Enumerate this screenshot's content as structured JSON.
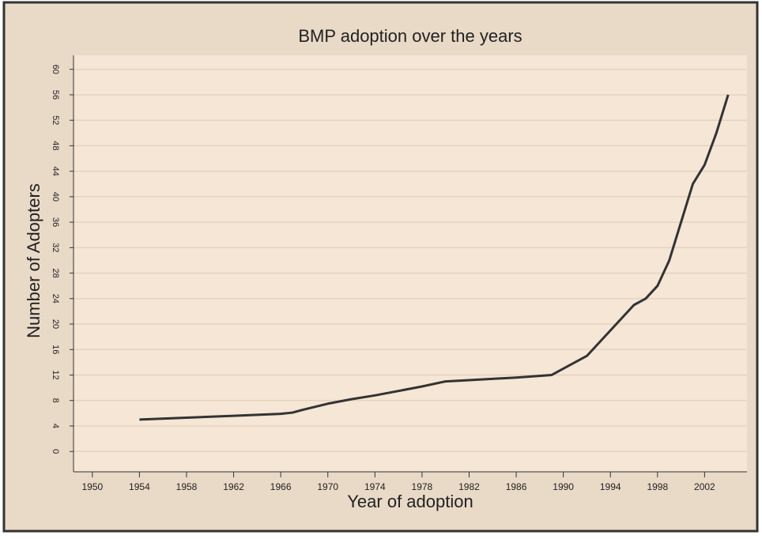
{
  "chart_data": {
    "type": "line",
    "title": "BMP adoption over the years",
    "x_label": "Year of adoption",
    "y_label": "Number of Adopters",
    "x": [
      1954,
      1958,
      1962,
      1966,
      1967,
      1968,
      1970,
      1972,
      1974,
      1976,
      1978,
      1980,
      1982,
      1986,
      1989,
      1990,
      1992,
      1993,
      1994,
      1995,
      1996,
      1997,
      1998,
      1999,
      2000,
      2001,
      2002,
      2003,
      2004
    ],
    "series": [
      {
        "name": "Adopters",
        "color": "#333333",
        "values": [
          5,
          5.3,
          5.6,
          5.9,
          6.1,
          6.6,
          7.5,
          8.2,
          8.8,
          9.5,
          10.2,
          11,
          11.2,
          11.6,
          12,
          13,
          15,
          17,
          19,
          21,
          23,
          24,
          26,
          30,
          36,
          42,
          45,
          50,
          56
        ]
      }
    ],
    "xlim": [
      1948.4,
      2005.6
    ],
    "xticks": [
      1950,
      1954,
      1958,
      1962,
      1966,
      1970,
      1974,
      1978,
      1982,
      1986,
      1990,
      1994,
      1998,
      2002
    ],
    "ylim": [
      -3.2,
      62.2
    ],
    "yticks": [
      0,
      4,
      8,
      12,
      16,
      20,
      24,
      28,
      32,
      36,
      40,
      44,
      48,
      52,
      56,
      60
    ],
    "grid": true
  }
}
